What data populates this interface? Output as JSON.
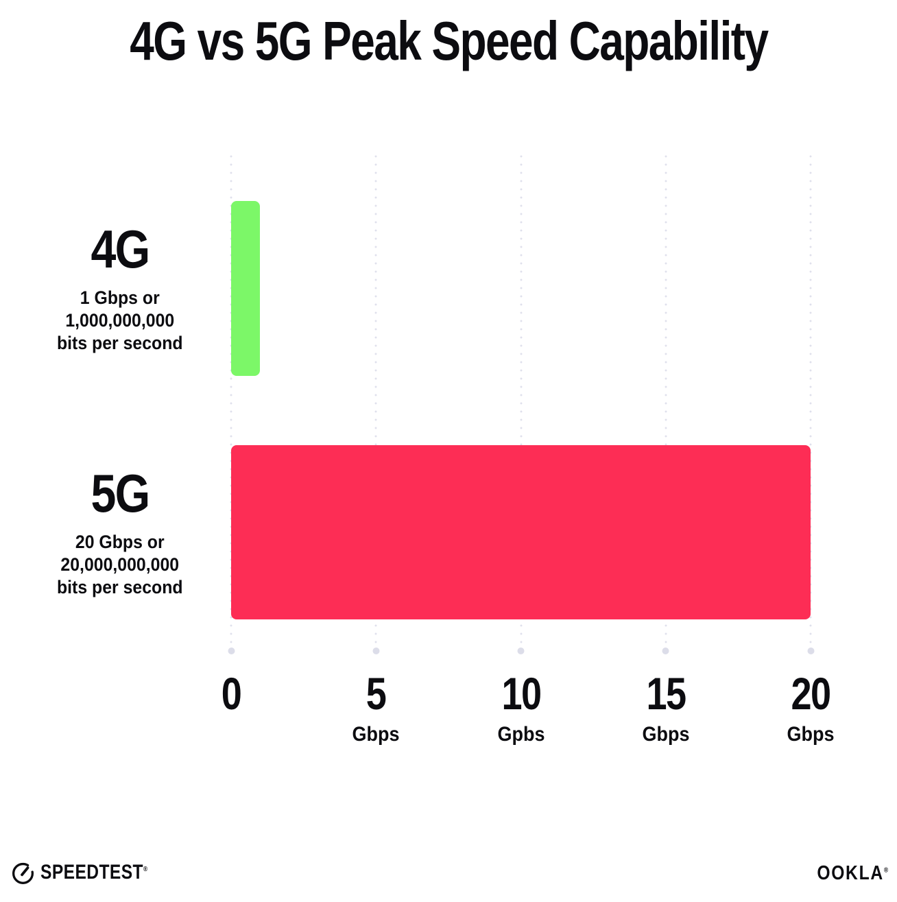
{
  "title": "4G vs 5G Peak Speed Capability",
  "colors": {
    "bar_4g": "#7CF768",
    "bar_5g": "#FD2D55",
    "gridline_dots": "#DFE0EC",
    "text": "#0C0C10",
    "background": "#FFFFFF"
  },
  "chart_data": {
    "type": "bar",
    "orientation": "horizontal",
    "title": "4G vs 5G Peak Speed Capability",
    "categories": [
      "4G",
      "5G"
    ],
    "values": [
      1,
      20
    ],
    "value_unit": "Gbps",
    "xlim": [
      0,
      20
    ],
    "grid": "dotted-vertical",
    "legend": "none",
    "bar_colors": [
      "#7CF768",
      "#FD2D55"
    ],
    "rows": [
      {
        "name": "4G",
        "value": 1,
        "sub": [
          "1 Gbps or",
          "1,000,000,000",
          "bits per second"
        ]
      },
      {
        "name": "5G",
        "value": 20,
        "sub": [
          "20 Gbps or",
          "20,000,000,000",
          "bits per second"
        ]
      }
    ],
    "x_ticks": [
      {
        "value": "0",
        "unit": ""
      },
      {
        "value": "5",
        "unit": "Gbps"
      },
      {
        "value": "10",
        "unit": "Gpbs"
      },
      {
        "value": "15",
        "unit": "Gbps"
      },
      {
        "value": "20",
        "unit": "Gbps"
      }
    ]
  },
  "footer": {
    "speedtest_label": "SPEEDTEST",
    "speedtest_mark": "®",
    "ookla_label": "OOKLA",
    "ookla_mark": "®"
  }
}
